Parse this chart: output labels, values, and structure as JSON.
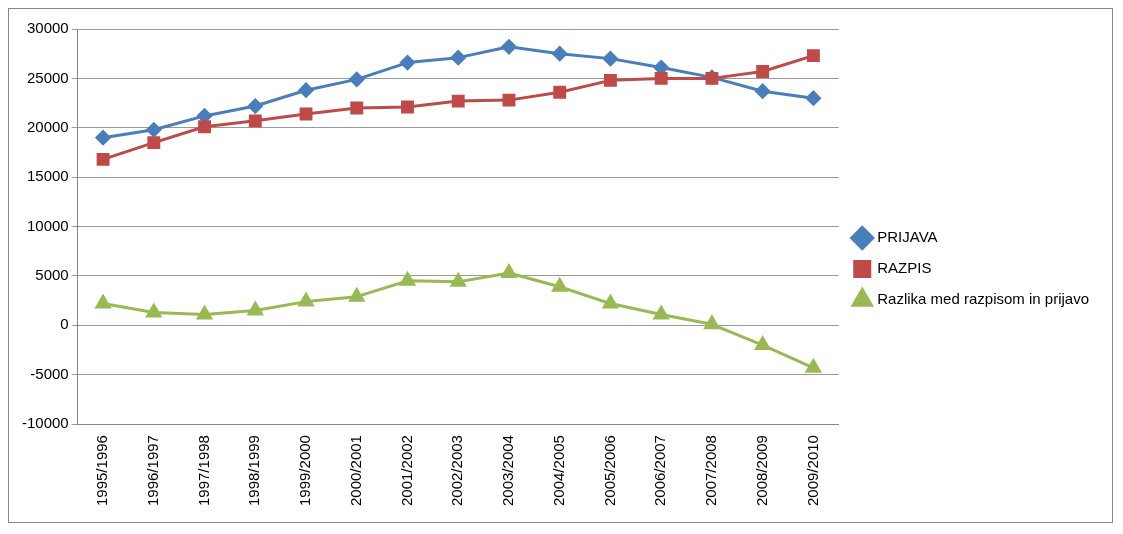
{
  "chart_data": {
    "type": "line",
    "categories": [
      "1995/1996",
      "1996/1997",
      "1997/1998",
      "1998/1999",
      "1999/2000",
      "2000/2001",
      "2001/2002",
      "2002/2003",
      "2003/2004",
      "2004/2005",
      "2005/2006",
      "2006/2007",
      "2007/2008",
      "2008/2009",
      "2009/2010"
    ],
    "series": [
      {
        "name": "PRIJAVA",
        "color": "#4a7ebb",
        "marker": "diamond",
        "values": [
          19000,
          19800,
          21200,
          22200,
          23800,
          24900,
          26600,
          27100,
          28200,
          27500,
          27000,
          26100,
          25100,
          23700,
          23000
        ]
      },
      {
        "name": "RAZPIS",
        "color": "#be4b48",
        "marker": "square",
        "values": [
          16800,
          18500,
          20100,
          20700,
          21400,
          22000,
          22100,
          22700,
          22800,
          23600,
          24800,
          25000,
          25000,
          25700,
          27300
        ]
      },
      {
        "name": "Razlika med razpisom in prijavo",
        "color": "#98b954",
        "marker": "triangle",
        "values": [
          2200,
          1300,
          1100,
          1500,
          2400,
          2900,
          4500,
          4400,
          5300,
          3900,
          2200,
          1100,
          100,
          -2000,
          -4300
        ]
      }
    ],
    "ylim": [
      -10000,
      30000
    ],
    "yticks": [
      -10000,
      -5000,
      0,
      5000,
      10000,
      15000,
      20000,
      25000,
      30000
    ],
    "grid": "y",
    "legend": "right"
  }
}
